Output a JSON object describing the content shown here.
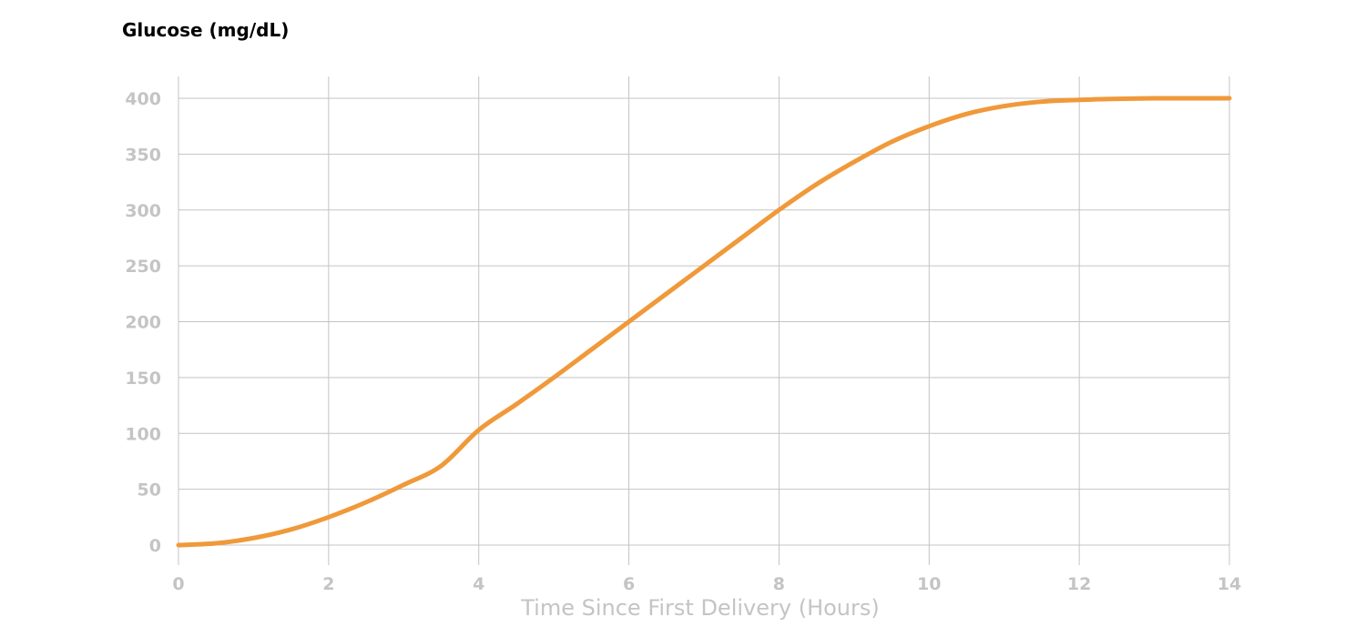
{
  "chart_data": {
    "type": "line",
    "title": "Glucose (mg/dL)",
    "xlabel": "Time Since First Delivery (Hours)",
    "ylabel": "",
    "xlim": [
      0,
      14
    ],
    "ylim": [
      0,
      400
    ],
    "xticks": [
      0,
      2,
      4,
      6,
      8,
      10,
      12,
      14
    ],
    "yticks": [
      0,
      50,
      100,
      150,
      200,
      250,
      300,
      350,
      400
    ],
    "grid": true,
    "line_color": "#f0993a",
    "series": [
      {
        "x": [
          0,
          0.5,
          1,
          1.5,
          2,
          2.5,
          3,
          3.5,
          4,
          4.5,
          5,
          5.5,
          6,
          6.5,
          7,
          7.5,
          8,
          8.5,
          9,
          9.5,
          10,
          10.5,
          11,
          11.5,
          12,
          12.5,
          13,
          13.5,
          14
        ],
        "values": [
          0,
          1.6,
          6.3,
          14,
          25,
          38.4,
          54,
          71,
          103,
          126,
          150,
          175,
          200,
          225,
          250,
          275,
          300,
          323,
          343,
          361,
          375,
          386,
          393,
          397,
          398.6,
          399.5,
          400,
          400,
          400
        ]
      }
    ]
  }
}
